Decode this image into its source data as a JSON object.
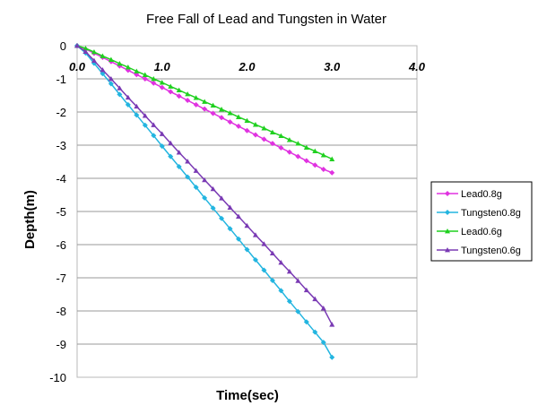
{
  "chart_data": {
    "type": "line",
    "title": "Free Fall of Lead and Tungsten in Water",
    "xlabel": "Time(sec)",
    "ylabel": "Depth(m)",
    "xlim": [
      0,
      4.0
    ],
    "ylim": [
      -10,
      0
    ],
    "x_ticks": [
      "0.0",
      "1.0",
      "2.0",
      "3.0",
      "4.0"
    ],
    "y_ticks": [
      "0",
      "-1",
      "-2",
      "-3",
      "-4",
      "-5",
      "-6",
      "-7",
      "-8",
      "-9",
      "-10"
    ],
    "x_axis_position": "top",
    "grid": "horizontal",
    "legend_position": "right",
    "x": [
      0.0,
      0.1,
      0.2,
      0.3,
      0.4,
      0.5,
      0.6,
      0.7,
      0.8,
      0.9,
      1.0,
      1.1,
      1.2,
      1.3,
      1.4,
      1.5,
      1.6,
      1.7,
      1.8,
      1.9,
      2.0,
      2.1,
      2.2,
      2.3,
      2.4,
      2.5,
      2.6,
      2.7,
      2.8,
      2.9,
      3.0
    ],
    "series": [
      {
        "name": "Lead0.8g",
        "color": "#e032e0",
        "marker": "diamond",
        "values": [
          0,
          -0.1,
          -0.23,
          -0.35,
          -0.48,
          -0.61,
          -0.74,
          -0.87,
          -1.0,
          -1.13,
          -1.26,
          -1.39,
          -1.52,
          -1.65,
          -1.78,
          -1.91,
          -2.04,
          -2.17,
          -2.3,
          -2.43,
          -2.56,
          -2.69,
          -2.82,
          -2.95,
          -3.08,
          -3.21,
          -3.34,
          -3.47,
          -3.6,
          -3.73,
          -3.83
        ]
      },
      {
        "name": "Tungsten0.8g",
        "color": "#23b5e0",
        "marker": "diamond",
        "values": [
          0,
          -0.22,
          -0.53,
          -0.84,
          -1.15,
          -1.47,
          -1.78,
          -2.09,
          -2.4,
          -2.71,
          -3.03,
          -3.34,
          -3.65,
          -3.96,
          -4.27,
          -4.59,
          -4.9,
          -5.21,
          -5.52,
          -5.83,
          -6.15,
          -6.46,
          -6.77,
          -7.08,
          -7.39,
          -7.71,
          -8.02,
          -8.33,
          -8.64,
          -8.95,
          -9.4
        ]
      },
      {
        "name": "Lead0.6g",
        "color": "#1fd01f",
        "marker": "triangle",
        "values": [
          0,
          -0.08,
          -0.19,
          -0.31,
          -0.42,
          -0.54,
          -0.65,
          -0.77,
          -0.88,
          -1.0,
          -1.11,
          -1.23,
          -1.34,
          -1.46,
          -1.57,
          -1.69,
          -1.8,
          -1.92,
          -2.03,
          -2.15,
          -2.26,
          -2.38,
          -2.49,
          -2.61,
          -2.72,
          -2.84,
          -2.95,
          -3.07,
          -3.18,
          -3.3,
          -3.42
        ]
      },
      {
        "name": "Tungsten0.6g",
        "color": "#7a3ab4",
        "marker": "triangle",
        "values": [
          0,
          -0.18,
          -0.45,
          -0.73,
          -1.0,
          -1.28,
          -1.56,
          -1.83,
          -2.11,
          -2.39,
          -2.66,
          -2.94,
          -3.22,
          -3.49,
          -3.77,
          -4.05,
          -4.32,
          -4.6,
          -4.88,
          -5.15,
          -5.43,
          -5.71,
          -5.98,
          -6.26,
          -6.54,
          -6.81,
          -7.09,
          -7.37,
          -7.64,
          -7.92,
          -8.41
        ]
      }
    ]
  }
}
